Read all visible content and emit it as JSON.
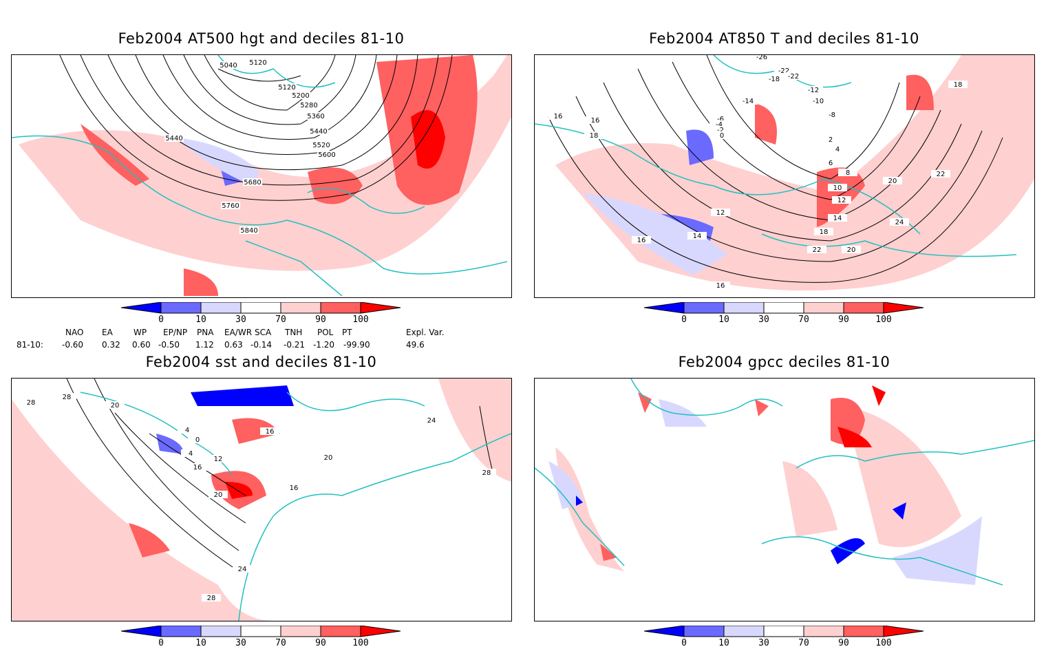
{
  "panels": [
    {
      "title": "Feb2004 AT500 hgt and deciles 81-10",
      "contour_labels": [
        "5040",
        "5120",
        "5120",
        "5200",
        "5280",
        "5360",
        "5440",
        "5440",
        "5520",
        "5600",
        "5680",
        "5760",
        "5840"
      ]
    },
    {
      "title": "Feb2004 AT850 T and deciles 81-10",
      "contour_labels": [
        "-26",
        "-22",
        "-22",
        "-18",
        "-14",
        "-12",
        "-10",
        "-8",
        "-6",
        "-4",
        "-2",
        "0",
        "2",
        "4",
        "6",
        "8",
        "10",
        "12",
        "12",
        "14",
        "14",
        "16",
        "16",
        "16",
        "16",
        "18",
        "18",
        "18",
        "20",
        "20",
        "22",
        "22",
        "24"
      ]
    },
    {
      "title": "Feb2004 sst and deciles 81-10",
      "contour_labels": [
        "28",
        "28",
        "20",
        "0",
        "4",
        "12",
        "16",
        "20",
        "24",
        "28",
        "4",
        "16",
        "16",
        "20",
        "24",
        "28"
      ]
    },
    {
      "title": "Feb2004 gpcc deciles 81-10",
      "contour_labels": []
    }
  ],
  "colorbar": {
    "ticks": [
      "0",
      "10",
      "30",
      "70",
      "90",
      "100"
    ],
    "colors": [
      "#0000ff",
      "#6a6aff",
      "#d8d8ff",
      "#ffffff",
      "#ffd0d0",
      "#ff6060",
      "#ff0000"
    ]
  },
  "indices": {
    "headers": [
      "NAO",
      "EA",
      "WP",
      "EP/NP",
      "PNA",
      "EA/WR",
      "SCA",
      "TNH",
      "POL",
      "PT",
      "Expl. Var."
    ],
    "period": "81-10:",
    "values": [
      "-0.60",
      "0.32",
      "0.60",
      "-0.50",
      "1.12",
      "0.63",
      "-0.14",
      "-0.21",
      "-1.20",
      "-99.90",
      "49.6"
    ]
  },
  "colors": {
    "coastline": "#20c0c0",
    "contour": "#000000",
    "frame": "#000000"
  }
}
